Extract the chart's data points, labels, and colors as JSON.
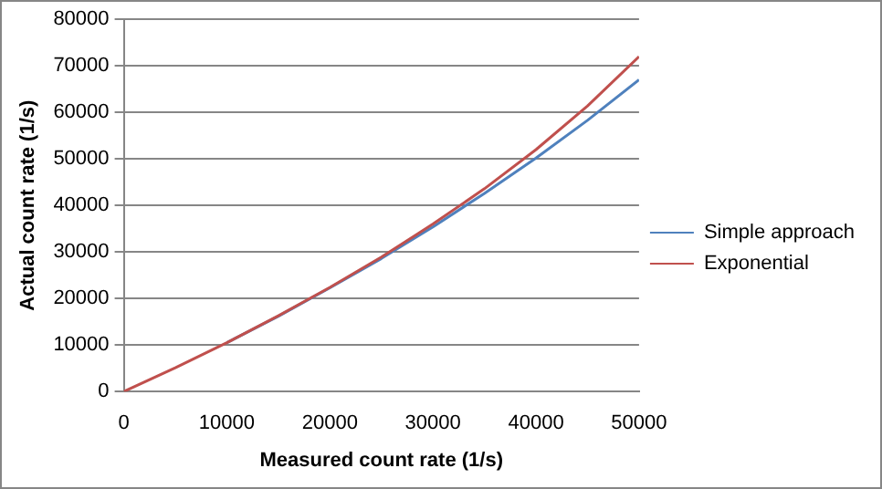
{
  "chart_data": {
    "type": "line",
    "xlabel": "Measured count rate (1/s)",
    "ylabel": "Actual count rate (1/s)",
    "x": [
      0,
      5000,
      10000,
      15000,
      20000,
      25000,
      30000,
      35000,
      40000,
      45000,
      50000
    ],
    "series": [
      {
        "name": "Simple approach",
        "color": "#4f81bd",
        "values": [
          null,
          null,
          10500,
          16200,
          22300,
          28600,
          35400,
          42600,
          50200,
          58300,
          67000
        ]
      },
      {
        "name": "Exponential",
        "color": "#c0504d",
        "values": [
          0,
          5100,
          10500,
          16300,
          22400,
          28900,
          36000,
          43600,
          52000,
          61400,
          72000
        ]
      }
    ],
    "xlim": [
      0,
      50000
    ],
    "xticks": [
      0,
      10000,
      20000,
      30000,
      40000,
      50000
    ],
    "ylim": [
      0,
      80000
    ],
    "yticks": [
      0,
      10000,
      20000,
      30000,
      40000,
      50000,
      60000,
      70000,
      80000
    ],
    "grid": "y",
    "legend": "right",
    "marker": "none",
    "line_style": "solid"
  }
}
